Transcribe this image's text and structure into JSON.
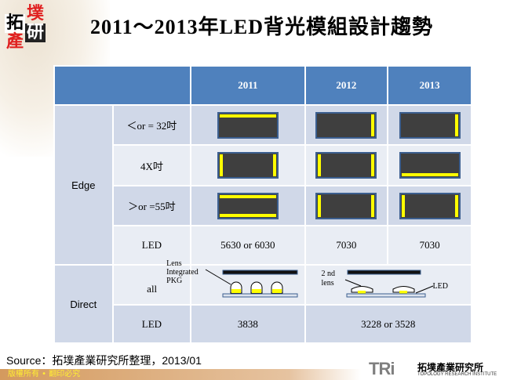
{
  "logo": {
    "chars": [
      "拓",
      "墣",
      "產",
      "研"
    ]
  },
  "title": "2011～2013年LED背光模組設計趨勢",
  "table": {
    "headers": [
      "",
      "2011",
      "2012",
      "2013"
    ],
    "edge_label": "Edge",
    "direct_label": "Direct",
    "edge_rows": [
      {
        "label": "＜or = 32吋",
        "panels": [
          [
            "top"
          ],
          [
            "right"
          ],
          [
            "right"
          ]
        ]
      },
      {
        "label": "4X吋",
        "panels": [
          [
            "left",
            "right"
          ],
          [
            "left",
            "right"
          ],
          [
            "bottom"
          ]
        ]
      },
      {
        "label": "＞or =55吋",
        "panels": [
          [
            "top",
            "bottom"
          ],
          [
            "left",
            "right"
          ],
          [
            "left",
            "right"
          ]
        ]
      },
      {
        "label": "LED",
        "values": [
          "5630 or 6030",
          "7030",
          "7030"
        ]
      }
    ],
    "direct_rows": [
      {
        "label": "all",
        "diagram1": {
          "label1": "Lens",
          "label2": "Integrated",
          "label3": "PKG"
        },
        "diagram2": {
          "label1": "2 nd",
          "label2": "lens",
          "label3": "LED"
        }
      },
      {
        "label": "LED",
        "values": [
          "3838",
          "3228 or 3528"
        ]
      }
    ]
  },
  "source": "Source：拓墣產業研究所整理，2013/01",
  "footer": "版權所有 • 翻印必究",
  "brand": {
    "mark": "TRi",
    "cn": "拓墣產業研究所",
    "en": "TOPOLOGY RESEARCH INSTITUTE"
  },
  "colors": {
    "header": "#4f81bd",
    "row_dark": "#d0d8e8",
    "row_light": "#e9edf4",
    "highlight": "#ffff00"
  }
}
